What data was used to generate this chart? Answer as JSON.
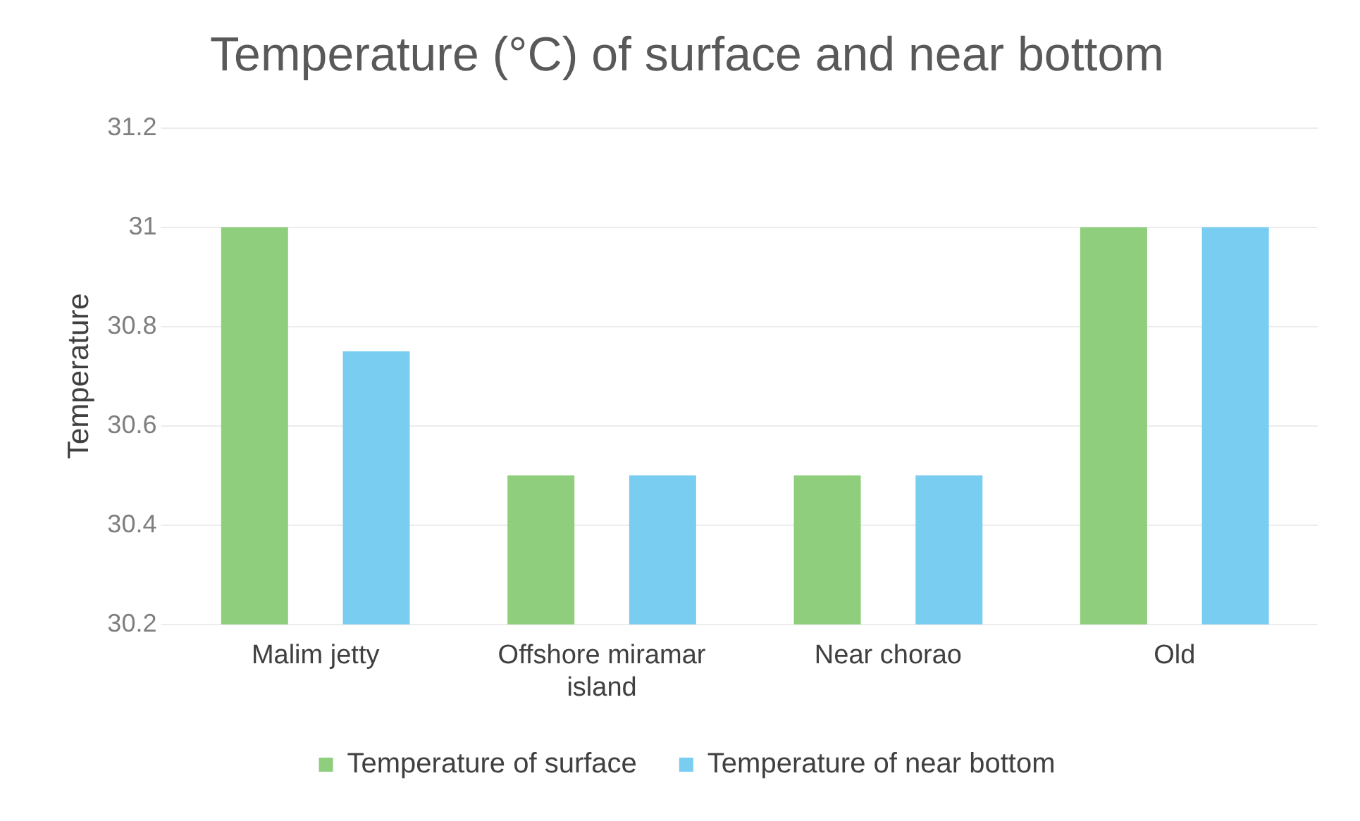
{
  "chart_data": {
    "type": "bar",
    "title": "Temperature (°C) of surface and near bottom",
    "ylabel": "Temperature",
    "categories": [
      "Malim jetty",
      "Offshore miramar island",
      "Near chorao",
      "Old"
    ],
    "series": [
      {
        "name": "Temperature of surface",
        "color": "#8fce7c",
        "values": [
          31.0,
          30.5,
          30.5,
          31.0
        ]
      },
      {
        "name": "Temperature of near bottom",
        "color": "#78cdf0",
        "values": [
          30.75,
          30.5,
          30.5,
          31.0
        ]
      }
    ],
    "ylim": [
      30.2,
      31.2
    ],
    "yticks": [
      30.2,
      30.4,
      30.6,
      30.8,
      31,
      31.2
    ],
    "grid": "y",
    "legend": "bottom"
  }
}
